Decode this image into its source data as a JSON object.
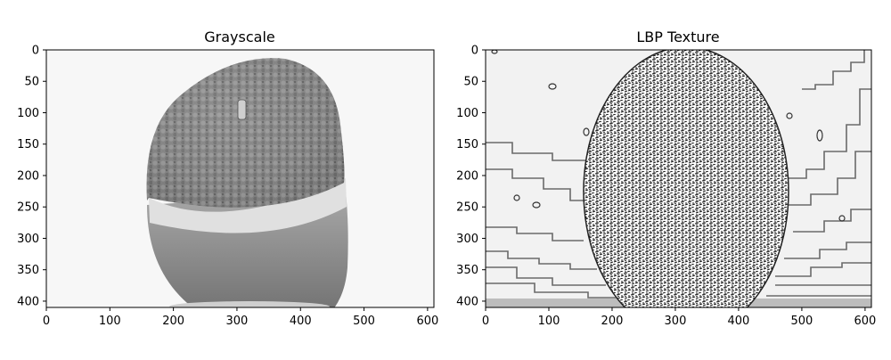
{
  "chart_data": [
    {
      "type": "image",
      "title": "Grayscale",
      "xlim": [
        0,
        610
      ],
      "ylim": [
        410,
        0
      ],
      "x_ticks": [
        0,
        100,
        200,
        300,
        400,
        500,
        600
      ],
      "y_ticks": [
        0,
        50,
        100,
        150,
        200,
        250,
        300,
        350,
        400
      ],
      "colormap": "gray",
      "content": "orange-grayscale-photo"
    },
    {
      "type": "image",
      "title": "LBP Texture",
      "xlim": [
        0,
        610
      ],
      "ylim": [
        410,
        0
      ],
      "x_ticks": [
        0,
        100,
        200,
        300,
        400,
        500,
        600
      ],
      "y_ticks": [
        0,
        50,
        100,
        150,
        200,
        250,
        300,
        350,
        400
      ],
      "colormap": "gray",
      "content": "local-binary-pattern-texture"
    }
  ]
}
